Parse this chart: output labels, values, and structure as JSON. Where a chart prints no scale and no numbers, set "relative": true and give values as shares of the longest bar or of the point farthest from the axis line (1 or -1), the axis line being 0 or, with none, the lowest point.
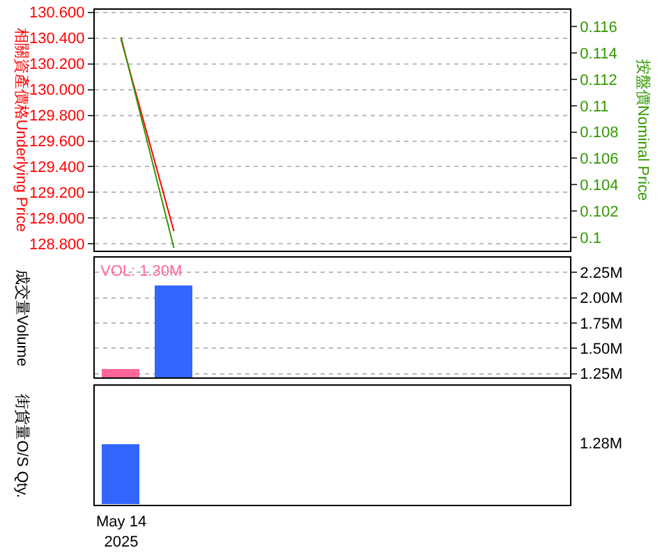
{
  "chart_data": [
    {
      "type": "line",
      "ylabel": "相關資產價格Underlying Price",
      "y2label": "按盤價Nominal Price",
      "categories": [
        null,
        null,
        null,
        null,
        null,
        null,
        null,
        null,
        null
      ],
      "ylim": [
        128.75,
        130.62
      ],
      "yticks": [
        {
          "value": 128.8,
          "label": "128.800"
        },
        {
          "value": 129.0,
          "label": "129.000"
        },
        {
          "value": 129.2,
          "label": "129.200"
        },
        {
          "value": 129.4,
          "label": "129.400"
        },
        {
          "value": 129.6,
          "label": "129.600"
        },
        {
          "value": 129.8,
          "label": "129.800"
        },
        {
          "value": 130.0,
          "label": "130.000"
        },
        {
          "value": 130.2,
          "label": "130.200"
        },
        {
          "value": 130.4,
          "label": "130.400"
        },
        {
          "value": 130.6,
          "label": "130.600"
        }
      ],
      "y2lim": [
        0.099,
        0.1173
      ],
      "y2ticks": [
        0.1,
        0.102,
        0.104,
        0.106,
        0.108,
        0.11,
        0.112,
        0.114,
        0.116
      ],
      "tick_labels": "y",
      "grid": "y",
      "marker": "none",
      "line_style": "solid",
      "series": [
        {
          "color": "#ff0000",
          "values": [
            130.39,
            128.9,
            null,
            null,
            null,
            null,
            null,
            null,
            null
          ]
        },
        {
          "color": "#339900",
          "axis": "y2",
          "values": [
            0.1152,
            0.0992,
            null,
            null,
            null,
            null,
            null,
            null,
            null
          ]
        }
      ]
    },
    {
      "type": "bar",
      "ylabel": "成交量Volume",
      "categories": [
        null,
        null,
        null,
        null,
        null,
        null,
        null,
        null,
        null
      ],
      "ylim": [
        1.21,
        2.4
      ],
      "yticks": [
        {
          "value": 1.25,
          "label": "1.25M"
        },
        {
          "value": 1.5,
          "label": "1.50M"
        },
        {
          "value": 1.75,
          "label": "1.75M"
        },
        {
          "value": 2.0,
          "label": "2.00M"
        },
        {
          "value": 2.25,
          "label": "2.25M"
        }
      ],
      "tick_labels": "y",
      "grid": "y",
      "values": [
        1.3,
        2.12,
        null,
        null,
        null,
        null,
        null,
        null,
        null
      ],
      "colors": [
        "#ff6699",
        "#3366ff",
        "#3366ff",
        "#3366ff",
        "#3366ff",
        "#3366ff",
        "#3366ff",
        "#3366ff",
        "#3366ff"
      ],
      "annotations": [
        "VOL: 1.30M"
      ]
    },
    {
      "type": "bar",
      "ylabel": "街貨量O/S Qty.",
      "categories": [
        null,
        null,
        null,
        null,
        null,
        null,
        null,
        null,
        null
      ],
      "relative": true,
      "tick_labels": false,
      "values": [
        1,
        null,
        null,
        null,
        null,
        null,
        null,
        null,
        null
      ],
      "colors": [
        "#3366ff",
        "#3366ff",
        "#3366ff",
        "#3366ff",
        "#3366ff",
        "#3366ff",
        "#3366ff",
        "#3366ff",
        "#3366ff"
      ],
      "annotations": [
        "1.28M",
        "May 14\n2025"
      ]
    }
  ]
}
